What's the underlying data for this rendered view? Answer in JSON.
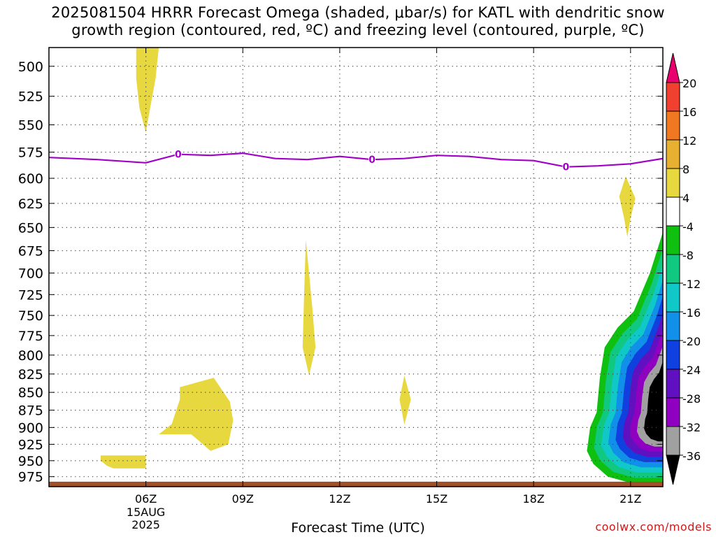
{
  "title_lines": [
    "2025081504 HRRR Forecast Omega (shaded, μbar/s) for KATL with dendritic snow",
    "growth region (contoured, red, ºC) and freezing level (contoured, purple, ºC)"
  ],
  "xlabel": "Forecast Time (UTC)",
  "credit": "coolwx.com/models",
  "chart_data": {
    "type": "heatmap",
    "x_domain_hours": [
      3,
      22
    ],
    "x_ticks": [
      {
        "hour": 6,
        "label": "06Z",
        "sub": [
          "15AUG",
          "2025"
        ]
      },
      {
        "hour": 9,
        "label": "09Z"
      },
      {
        "hour": 12,
        "label": "12Z"
      },
      {
        "hour": 15,
        "label": "15Z"
      },
      {
        "hour": 18,
        "label": "18Z"
      },
      {
        "hour": 21,
        "label": "21Z"
      }
    ],
    "y_domain_hpa": [
      485,
      991
    ],
    "y_ticks": [
      500,
      525,
      550,
      575,
      600,
      625,
      650,
      675,
      700,
      725,
      750,
      775,
      800,
      825,
      850,
      875,
      900,
      925,
      950,
      975
    ],
    "grid": true,
    "colorbar": {
      "labels": [
        "20",
        "16",
        "12",
        "8",
        "4",
        "-4",
        "-8",
        "-12",
        "-16",
        "-20",
        "-24",
        "-28",
        "-32",
        "-36"
      ],
      "colors_top_to_bottom": [
        "#e8006e",
        "#f04030",
        "#f07820",
        "#e8b030",
        "#e8d840",
        "#ffffff",
        "#10c010",
        "#10c880",
        "#10c8c8",
        "#1090e8",
        "#1040e0",
        "#6010c0",
        "#9000c0",
        "#a0a0a0",
        "#000000"
      ]
    },
    "freezing_level": {
      "color": "#a000c8",
      "label": "0",
      "points_hour_hpa": [
        [
          3.0,
          580
        ],
        [
          4.5,
          582
        ],
        [
          6.0,
          585
        ],
        [
          7.0,
          577
        ],
        [
          8.0,
          578
        ],
        [
          9.0,
          576
        ],
        [
          10.0,
          581
        ],
        [
          11.0,
          582
        ],
        [
          12.0,
          579
        ],
        [
          13.0,
          582
        ],
        [
          14.0,
          581
        ],
        [
          15.0,
          578
        ],
        [
          16.0,
          579
        ],
        [
          17.0,
          582
        ],
        [
          18.0,
          583
        ],
        [
          19.0,
          589
        ],
        [
          20.0,
          588
        ],
        [
          21.0,
          586
        ],
        [
          22.0,
          581
        ]
      ],
      "labels_at_hours": [
        7.0,
        13.0,
        19.0
      ]
    },
    "omega_regions": [
      {
        "value": 6,
        "color": "#e8d840",
        "points_hour_hpa": [
          [
            5.7,
            485
          ],
          [
            6.4,
            485
          ],
          [
            6.3,
            510
          ],
          [
            6.1,
            540
          ],
          [
            6.0,
            557
          ],
          [
            5.8,
            535
          ],
          [
            5.7,
            510
          ]
        ]
      },
      {
        "value": 6,
        "color": "#e8d840",
        "points_hour_hpa": [
          [
            20.85,
            598
          ],
          [
            21.15,
            620
          ],
          [
            21.0,
            640
          ],
          [
            20.9,
            660
          ],
          [
            20.8,
            640
          ],
          [
            20.65,
            618
          ]
        ]
      },
      {
        "value": 6,
        "color": "#e8d840",
        "points_hour_hpa": [
          [
            10.95,
            663
          ],
          [
            11.15,
            740
          ],
          [
            11.25,
            790
          ],
          [
            11.05,
            827
          ],
          [
            10.85,
            790
          ],
          [
            10.9,
            720
          ]
        ]
      },
      {
        "value": 6,
        "color": "#e8d840",
        "points_hour_hpa": [
          [
            14.0,
            827
          ],
          [
            14.2,
            860
          ],
          [
            14.0,
            896
          ],
          [
            13.85,
            860
          ]
        ]
      },
      {
        "value": 6,
        "color": "#e8d840",
        "points_hour_hpa": [
          [
            7.05,
            843
          ],
          [
            8.1,
            830
          ],
          [
            8.6,
            863
          ],
          [
            8.7,
            890
          ],
          [
            8.55,
            925
          ],
          [
            8.0,
            935
          ],
          [
            7.6,
            918
          ],
          [
            7.4,
            910
          ],
          [
            6.4,
            910
          ],
          [
            6.8,
            895
          ],
          [
            7.05,
            860
          ]
        ]
      },
      {
        "value": 6,
        "color": "#e8d840",
        "points_hour_hpa": [
          [
            4.6,
            942
          ],
          [
            6.0,
            942
          ],
          [
            6.0,
            962
          ],
          [
            5.0,
            962
          ],
          [
            4.8,
            958
          ],
          [
            4.6,
            950
          ]
        ]
      }
    ],
    "omega_strong_region": {
      "bands_outer_to_inner": [
        {
          "value": -6,
          "color": "#10c010"
        },
        {
          "value": -10,
          "color": "#10c880"
        },
        {
          "value": -14,
          "color": "#10c8c8"
        },
        {
          "value": -18,
          "color": "#1090e8"
        },
        {
          "value": -22,
          "color": "#1040e0"
        },
        {
          "value": -26,
          "color": "#6010c0"
        },
        {
          "value": -30,
          "color": "#9000c0"
        },
        {
          "value": -34,
          "color": "#a0a0a0"
        },
        {
          "value": -38,
          "color": "#000000"
        }
      ],
      "outer_points_hour_hpa": [
        [
          22.0,
          655
        ],
        [
          21.6,
          700
        ],
        [
          21.1,
          745
        ],
        [
          20.6,
          765
        ],
        [
          20.2,
          790
        ],
        [
          20.05,
          830
        ],
        [
          19.95,
          878
        ],
        [
          19.75,
          900
        ],
        [
          19.65,
          935
        ],
        [
          19.85,
          955
        ],
        [
          20.3,
          975
        ],
        [
          21.0,
          985
        ],
        [
          22.0,
          985
        ]
      ]
    },
    "surface": {
      "color": "#a05028",
      "hpa_top": 983,
      "hpa_bottom": 991
    }
  }
}
